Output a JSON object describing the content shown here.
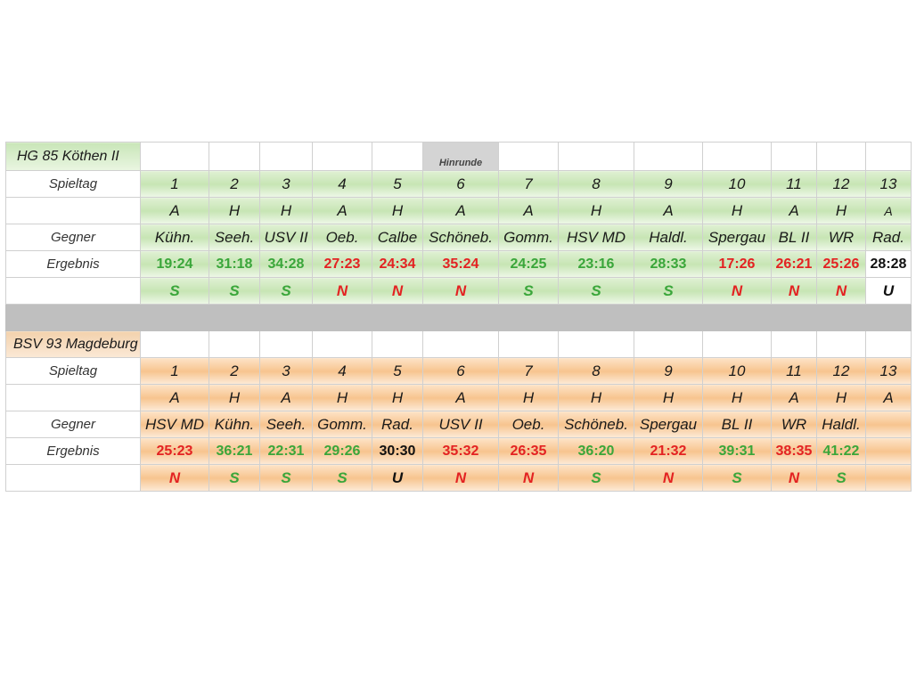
{
  "hinrunde_label": "Hinrunde",
  "team1": {
    "name": "HG 85 Köthen II",
    "spieltag_label": "Spieltag",
    "gegner_label": "Gegner",
    "ergebnis_label": "Ergebnis",
    "spieltage": [
      "1",
      "2",
      "3",
      "4",
      "5",
      "6",
      "7",
      "8",
      "9",
      "10",
      "11",
      "12",
      "13"
    ],
    "ort": [
      "A",
      "H",
      "H",
      "A",
      "H",
      "A",
      "A",
      "H",
      "A",
      "H",
      "A",
      "H",
      "A"
    ],
    "gegner": [
      "Kühn.",
      "Seeh.",
      "USV II",
      "Oeb.",
      "Calbe",
      "Schöneb.",
      "Gomm.",
      "HSV MD",
      "Haldl.",
      "Spergau",
      "BL II",
      "WR",
      "Rad."
    ],
    "ergebnis": [
      "19:24",
      "31:18",
      "34:28",
      "27:23",
      "24:34",
      "35:24",
      "24:25",
      "23:16",
      "28:33",
      "17:26",
      "26:21",
      "25:26",
      "28:28"
    ],
    "wertung": [
      "S",
      "S",
      "S",
      "N",
      "N",
      "N",
      "S",
      "S",
      "S",
      "N",
      "N",
      "N",
      "U"
    ]
  },
  "team2": {
    "name": "BSV 93 Magdeburg",
    "spieltag_label": "Spieltag",
    "gegner_label": "Gegner",
    "ergebnis_label": "Ergebnis",
    "spieltage": [
      "1",
      "2",
      "3",
      "4",
      "5",
      "6",
      "7",
      "8",
      "9",
      "10",
      "11",
      "12",
      "13"
    ],
    "ort": [
      "A",
      "H",
      "A",
      "H",
      "H",
      "A",
      "H",
      "H",
      "H",
      "H",
      "A",
      "H",
      "A"
    ],
    "gegner": [
      "HSV MD",
      "Kühn.",
      "Seeh.",
      "Gomm.",
      "Rad.",
      "USV II",
      "Oeb.",
      "Schöneb.",
      "Spergau",
      "BL II",
      "WR",
      "Haldl.",
      ""
    ],
    "ergebnis": [
      "25:23",
      "36:21",
      "22:31",
      "29:26",
      "30:30",
      "35:32",
      "26:35",
      "36:20",
      "21:32",
      "39:31",
      "38:35",
      "41:22",
      ""
    ],
    "wertung": [
      "N",
      "S",
      "S",
      "S",
      "U",
      "N",
      "N",
      "S",
      "N",
      "S",
      "N",
      "S",
      ""
    ]
  },
  "colors": {
    "win": "#3aa63a",
    "loss": "#e32222",
    "draw": "#111111",
    "green_band": "#c7e5b4",
    "orange_band": "#f7c48f"
  }
}
